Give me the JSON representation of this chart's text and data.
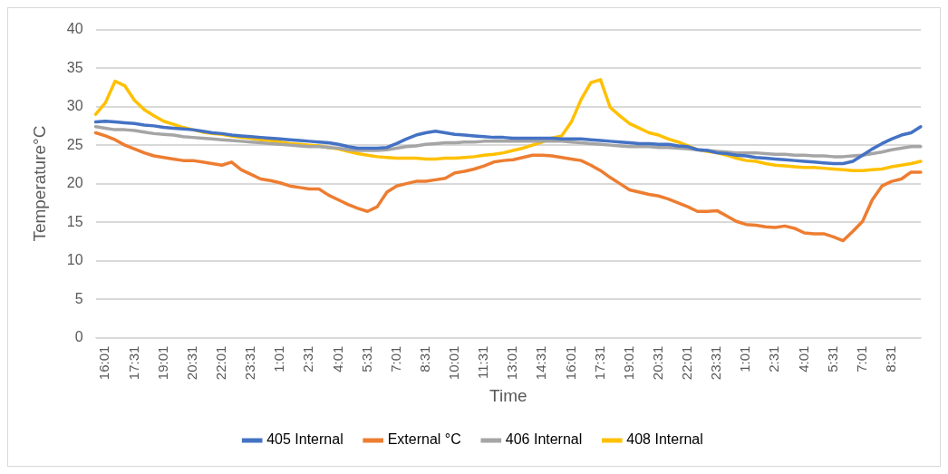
{
  "chart_data": {
    "type": "line",
    "xlabel": "Time",
    "ylabel": "Temperature°C",
    "categories": [
      null,
      "16:01",
      null,
      null,
      "17:31",
      null,
      null,
      "19:01",
      null,
      null,
      "20:31",
      null,
      null,
      "22:01",
      null,
      null,
      "23:31",
      null,
      null,
      "1:01",
      null,
      null,
      "2:31",
      null,
      null,
      "4:01",
      null,
      null,
      "5:31",
      null,
      null,
      "7:01",
      null,
      null,
      "8:31",
      null,
      null,
      "10:01",
      null,
      null,
      "11:31",
      null,
      null,
      "13:01",
      null,
      null,
      "14:31",
      null,
      null,
      "16:01",
      null,
      null,
      "17:31",
      null,
      null,
      "19:01",
      null,
      null,
      "20:31",
      null,
      null,
      "22:01",
      null,
      null,
      "23:31",
      null,
      null,
      "1:01",
      null,
      null,
      "2:31",
      null,
      null,
      "4:01",
      null,
      null,
      "5:31",
      null,
      null,
      "7:01",
      null,
      null,
      "8:31",
      null,
      null,
      null
    ],
    "series": [
      {
        "name": "405 Internal",
        "color": "#4472c4",
        "values": [
          28.0,
          28.1,
          28.0,
          27.9,
          27.8,
          27.6,
          27.5,
          27.3,
          27.2,
          27.1,
          27.0,
          26.8,
          26.6,
          26.5,
          26.3,
          26.2,
          26.1,
          26.0,
          25.9,
          25.8,
          25.7,
          25.6,
          25.5,
          25.4,
          25.3,
          25.1,
          24.8,
          24.6,
          24.6,
          24.6,
          24.7,
          25.2,
          25.8,
          26.3,
          26.6,
          26.8,
          26.6,
          26.4,
          26.3,
          26.2,
          26.1,
          26.0,
          26.0,
          25.9,
          25.9,
          25.9,
          25.9,
          25.9,
          25.8,
          25.8,
          25.8,
          25.7,
          25.6,
          25.5,
          25.4,
          25.3,
          25.2,
          25.2,
          25.1,
          25.1,
          24.9,
          24.8,
          24.4,
          24.3,
          24.0,
          23.9,
          23.7,
          23.6,
          23.4,
          23.3,
          23.2,
          23.1,
          23.0,
          22.9,
          22.8,
          22.7,
          22.6,
          22.6,
          22.9,
          23.7,
          24.5,
          25.2,
          25.8,
          26.3,
          26.6,
          27.4
        ]
      },
      {
        "name": "External °C",
        "color": "#ed7d31",
        "values": [
          26.6,
          26.2,
          25.7,
          25.0,
          24.5,
          24.0,
          23.6,
          23.4,
          23.2,
          23.0,
          23.0,
          22.8,
          22.6,
          22.4,
          22.8,
          21.8,
          21.2,
          20.6,
          20.4,
          20.1,
          19.7,
          19.5,
          19.3,
          19.3,
          18.5,
          17.9,
          17.3,
          16.8,
          16.4,
          17.0,
          18.9,
          19.7,
          20.0,
          20.3,
          20.3,
          20.5,
          20.7,
          21.4,
          21.6,
          21.9,
          22.3,
          22.8,
          23.0,
          23.1,
          23.4,
          23.7,
          23.7,
          23.6,
          23.4,
          23.2,
          23.0,
          22.4,
          21.7,
          20.8,
          20.0,
          19.2,
          18.9,
          18.6,
          18.4,
          18.0,
          17.5,
          17.0,
          16.4,
          16.4,
          16.5,
          15.8,
          15.1,
          14.7,
          14.6,
          14.4,
          14.3,
          14.5,
          14.2,
          13.6,
          13.5,
          13.5,
          13.1,
          12.6,
          13.8,
          15.1,
          17.9,
          19.7,
          20.3,
          20.6,
          21.5,
          21.5
        ]
      },
      {
        "name": "406 Internal",
        "color": "#a5a5a5",
        "values": [
          27.4,
          27.2,
          27.0,
          27.0,
          26.9,
          26.7,
          26.5,
          26.4,
          26.3,
          26.1,
          26.0,
          25.9,
          25.8,
          25.7,
          25.6,
          25.5,
          25.4,
          25.3,
          25.2,
          25.1,
          25.0,
          24.9,
          24.8,
          24.8,
          24.7,
          24.6,
          24.4,
          24.3,
          24.3,
          24.3,
          24.4,
          24.6,
          24.8,
          24.9,
          25.1,
          25.2,
          25.3,
          25.3,
          25.4,
          25.4,
          25.5,
          25.5,
          25.5,
          25.5,
          25.5,
          25.5,
          25.5,
          25.5,
          25.5,
          25.4,
          25.3,
          25.2,
          25.1,
          25.0,
          24.9,
          24.8,
          24.8,
          24.8,
          24.7,
          24.7,
          24.6,
          24.5,
          24.4,
          24.3,
          24.2,
          24.1,
          24.0,
          24.0,
          24.0,
          23.9,
          23.8,
          23.8,
          23.7,
          23.7,
          23.6,
          23.6,
          23.5,
          23.5,
          23.6,
          23.7,
          23.9,
          24.1,
          24.4,
          24.6,
          24.8,
          24.8
        ]
      },
      {
        "name": "408 Internal",
        "color": "#ffc000",
        "values": [
          29.0,
          30.5,
          33.3,
          32.7,
          30.8,
          29.6,
          28.8,
          28.1,
          27.7,
          27.3,
          27.0,
          26.7,
          26.5,
          26.4,
          26.2,
          26.0,
          25.9,
          25.7,
          25.6,
          25.4,
          25.2,
          25.1,
          25.0,
          24.9,
          24.7,
          24.5,
          24.2,
          23.9,
          23.7,
          23.5,
          23.4,
          23.3,
          23.3,
          23.3,
          23.2,
          23.2,
          23.3,
          23.3,
          23.4,
          23.5,
          23.7,
          23.8,
          24.0,
          24.3,
          24.6,
          25.0,
          25.4,
          25.9,
          26.2,
          28.0,
          30.9,
          33.1,
          33.5,
          29.9,
          28.8,
          27.8,
          27.2,
          26.6,
          26.3,
          25.8,
          25.4,
          24.9,
          24.4,
          24.2,
          24.0,
          23.7,
          23.3,
          23.0,
          22.9,
          22.6,
          22.4,
          22.3,
          22.2,
          22.1,
          22.1,
          22.0,
          21.9,
          21.8,
          21.7,
          21.7,
          21.8,
          21.9,
          22.2,
          22.4,
          22.6,
          22.9
        ]
      }
    ],
    "ylim": [
      0,
      40
    ],
    "yticks": [
      0,
      5,
      10,
      15,
      20,
      25,
      30,
      35,
      40
    ],
    "grid": "y",
    "legend": "bottom",
    "marker": "none",
    "line_style": "solid"
  }
}
